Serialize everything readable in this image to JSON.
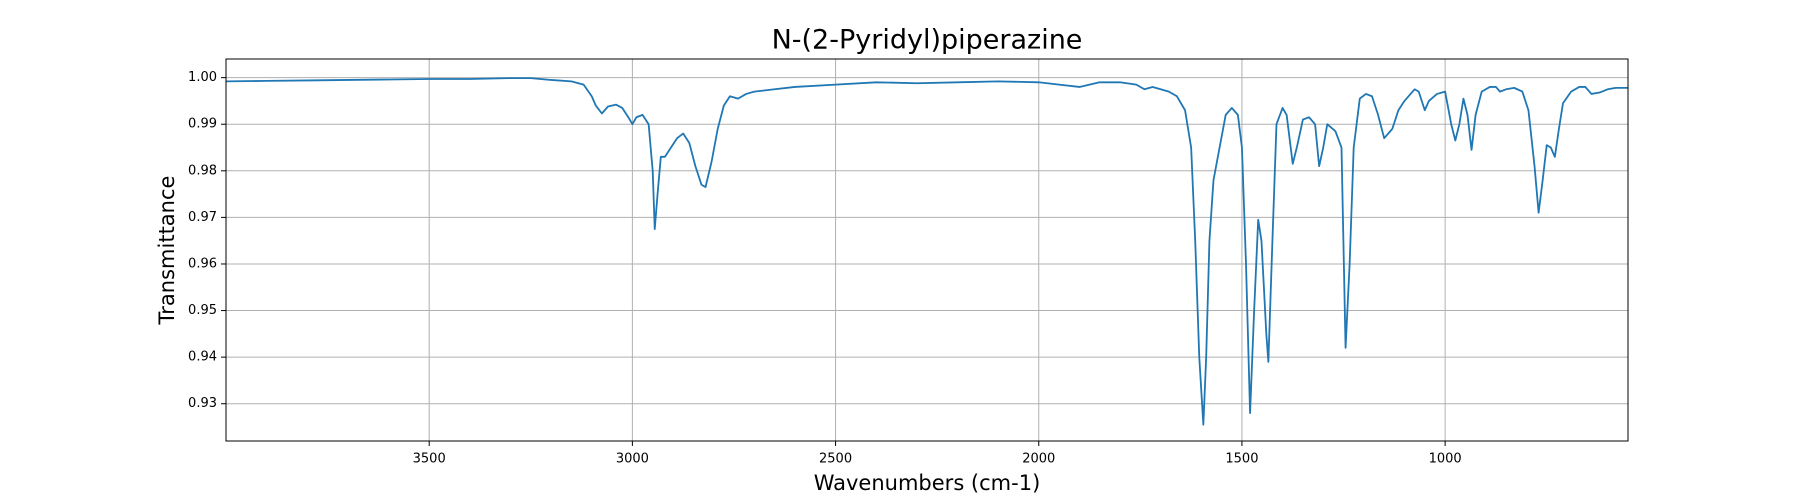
{
  "chart_data": {
    "type": "line",
    "title": "N-(2-Pyridyl)piperazine",
    "x_label": "Wavenumbers (cm-1)",
    "y_label": "Transmittance",
    "x": [
      4000,
      3900,
      3800,
      3700,
      3600,
      3500,
      3400,
      3300,
      3250,
      3200,
      3150,
      3120,
      3100,
      3090,
      3075,
      3060,
      3040,
      3025,
      3010,
      3000,
      2990,
      2975,
      2960,
      2950,
      2945,
      2938,
      2930,
      2920,
      2905,
      2890,
      2875,
      2860,
      2845,
      2830,
      2820,
      2805,
      2790,
      2775,
      2760,
      2740,
      2720,
      2700,
      2650,
      2600,
      2500,
      2400,
      2300,
      2200,
      2100,
      2000,
      1950,
      1900,
      1850,
      1800,
      1760,
      1740,
      1720,
      1700,
      1680,
      1660,
      1640,
      1625,
      1615,
      1605,
      1595,
      1588,
      1580,
      1570,
      1555,
      1540,
      1525,
      1510,
      1500,
      1490,
      1480,
      1470,
      1460,
      1452,
      1440,
      1435,
      1425,
      1415,
      1400,
      1390,
      1375,
      1365,
      1350,
      1335,
      1320,
      1310,
      1300,
      1290,
      1270,
      1255,
      1245,
      1235,
      1225,
      1210,
      1195,
      1180,
      1165,
      1150,
      1130,
      1115,
      1100,
      1085,
      1075,
      1065,
      1050,
      1040,
      1020,
      1000,
      985,
      975,
      965,
      955,
      945,
      935,
      925,
      910,
      890,
      875,
      865,
      850,
      830,
      810,
      795,
      780,
      770,
      760,
      750,
      740,
      730,
      720,
      710,
      690,
      670,
      655,
      640,
      620,
      600,
      580,
      550
    ],
    "series": [
      {
        "name": "N-(2-Pyridyl)piperazine",
        "color": "#1f77b4",
        "values": [
          0.9992,
          0.9993,
          0.9994,
          0.9995,
          0.9996,
          0.9997,
          0.9997,
          0.9999,
          0.9999,
          0.9995,
          0.9992,
          0.9985,
          0.996,
          0.994,
          0.9923,
          0.9938,
          0.9942,
          0.9935,
          0.9915,
          0.99,
          0.9915,
          0.992,
          0.99,
          0.98,
          0.9675,
          0.975,
          0.983,
          0.983,
          0.985,
          0.987,
          0.988,
          0.986,
          0.981,
          0.977,
          0.9765,
          0.982,
          0.989,
          0.994,
          0.996,
          0.9955,
          0.9965,
          0.997,
          0.9975,
          0.998,
          0.9985,
          0.999,
          0.9988,
          0.999,
          0.9992,
          0.999,
          0.9985,
          0.998,
          0.999,
          0.999,
          0.9985,
          0.9975,
          0.998,
          0.9975,
          0.997,
          0.996,
          0.993,
          0.985,
          0.965,
          0.94,
          0.9255,
          0.94,
          0.965,
          0.978,
          0.985,
          0.992,
          0.9935,
          0.992,
          0.985,
          0.96,
          0.928,
          0.95,
          0.9695,
          0.965,
          0.945,
          0.939,
          0.965,
          0.99,
          0.9935,
          0.992,
          0.9815,
          0.985,
          0.991,
          0.9915,
          0.99,
          0.981,
          0.985,
          0.99,
          0.9885,
          0.985,
          0.942,
          0.96,
          0.985,
          0.9955,
          0.9965,
          0.996,
          0.992,
          0.987,
          0.989,
          0.993,
          0.995,
          0.9965,
          0.9975,
          0.997,
          0.993,
          0.995,
          0.9965,
          0.997,
          0.99,
          0.9865,
          0.99,
          0.9955,
          0.992,
          0.9845,
          0.992,
          0.997,
          0.998,
          0.998,
          0.997,
          0.9975,
          0.9978,
          0.997,
          0.993,
          0.981,
          0.971,
          0.978,
          0.9855,
          0.985,
          0.983,
          0.989,
          0.9945,
          0.997,
          0.998,
          0.998,
          0.9965,
          0.9968,
          0.9975,
          0.9978,
          0.9978
        ]
      }
    ],
    "xlim": [
      4000,
      550
    ],
    "ylim": [
      0.922,
      1.004
    ],
    "xticks": [
      3500,
      3000,
      2500,
      2000,
      1500,
      1000
    ],
    "yticks": [
      0.93,
      0.94,
      0.95,
      0.96,
      0.97,
      0.98,
      0.99,
      {
        "value": 1,
        "label": "1.00"
      }
    ],
    "grid": true
  }
}
